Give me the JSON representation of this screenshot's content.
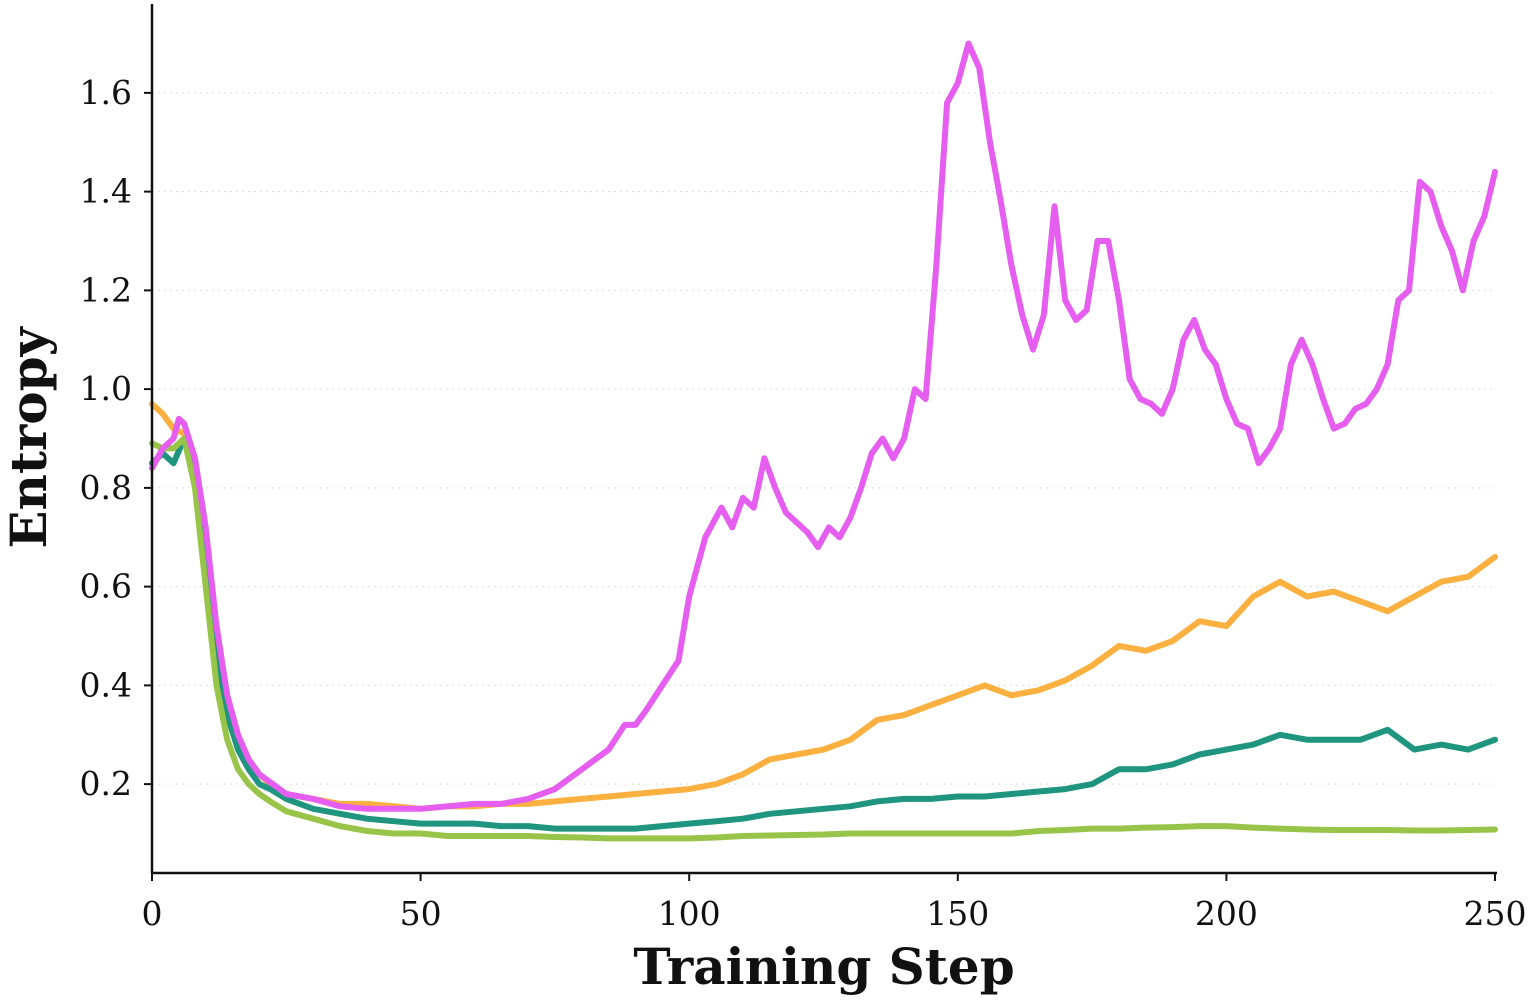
{
  "chart_data": {
    "type": "line",
    "title": "",
    "xlabel": "Training Step",
    "ylabel": "Entropy",
    "xlim": [
      0,
      250
    ],
    "ylim": [
      0.02,
      1.78
    ],
    "xticks": [
      0,
      50,
      100,
      150,
      200,
      250
    ],
    "xtick_labels": [
      "0",
      "50",
      "100",
      "150",
      "200",
      "250"
    ],
    "yticks": [
      0.2,
      0.4,
      0.6,
      0.8,
      1.0,
      1.2,
      1.4,
      1.6
    ],
    "ytick_labels": [
      "0.2",
      "0.4",
      "0.6",
      "0.8",
      "1.0",
      "1.2",
      "1.4",
      "1.6"
    ],
    "grid": "horizontal-dotted",
    "legend": "none",
    "series": [
      {
        "color": "#fbb040",
        "x": [
          0,
          2,
          4,
          6,
          8,
          10,
          12,
          14,
          16,
          18,
          20,
          22,
          25,
          30,
          35,
          40,
          45,
          50,
          55,
          60,
          65,
          70,
          75,
          80,
          85,
          90,
          95,
          100,
          105,
          110,
          115,
          120,
          125,
          130,
          135,
          140,
          145,
          150,
          155,
          160,
          165,
          170,
          175,
          180,
          185,
          190,
          195,
          200,
          205,
          210,
          215,
          220,
          225,
          230,
          235,
          240,
          245,
          250
        ],
        "y": [
          0.97,
          0.95,
          0.92,
          0.91,
          0.85,
          0.7,
          0.52,
          0.38,
          0.3,
          0.25,
          0.22,
          0.2,
          0.18,
          0.17,
          0.16,
          0.16,
          0.155,
          0.15,
          0.155,
          0.155,
          0.16,
          0.16,
          0.165,
          0.17,
          0.175,
          0.18,
          0.185,
          0.19,
          0.2,
          0.22,
          0.25,
          0.26,
          0.27,
          0.29,
          0.33,
          0.34,
          0.36,
          0.38,
          0.4,
          0.38,
          0.39,
          0.41,
          0.44,
          0.48,
          0.47,
          0.49,
          0.53,
          0.52,
          0.58,
          0.61,
          0.58,
          0.59,
          0.57,
          0.55,
          0.58,
          0.61,
          0.62,
          0.66
        ]
      },
      {
        "color": "#1f9580",
        "x": [
          0,
          2,
          4,
          6,
          8,
          10,
          12,
          14,
          16,
          18,
          20,
          22,
          25,
          30,
          35,
          40,
          45,
          50,
          55,
          60,
          65,
          70,
          75,
          80,
          85,
          90,
          95,
          100,
          105,
          110,
          115,
          120,
          125,
          130,
          135,
          140,
          145,
          150,
          155,
          160,
          165,
          170,
          175,
          180,
          185,
          190,
          195,
          200,
          205,
          210,
          215,
          220,
          225,
          230,
          235,
          240,
          245,
          250
        ],
        "y": [
          0.85,
          0.87,
          0.85,
          0.9,
          0.82,
          0.66,
          0.47,
          0.34,
          0.27,
          0.23,
          0.2,
          0.19,
          0.17,
          0.15,
          0.14,
          0.13,
          0.125,
          0.12,
          0.12,
          0.12,
          0.115,
          0.115,
          0.11,
          0.11,
          0.11,
          0.11,
          0.115,
          0.12,
          0.125,
          0.13,
          0.14,
          0.145,
          0.15,
          0.155,
          0.165,
          0.17,
          0.17,
          0.175,
          0.175,
          0.18,
          0.185,
          0.19,
          0.2,
          0.23,
          0.23,
          0.24,
          0.26,
          0.27,
          0.28,
          0.3,
          0.29,
          0.29,
          0.29,
          0.31,
          0.27,
          0.28,
          0.27,
          0.29
        ]
      },
      {
        "color": "#98c549",
        "x": [
          0,
          2,
          4,
          6,
          8,
          10,
          12,
          14,
          16,
          18,
          20,
          22,
          25,
          30,
          35,
          40,
          45,
          50,
          55,
          60,
          65,
          70,
          75,
          80,
          85,
          90,
          95,
          100,
          105,
          110,
          115,
          120,
          125,
          130,
          135,
          140,
          145,
          150,
          155,
          160,
          165,
          170,
          175,
          180,
          185,
          190,
          195,
          200,
          205,
          210,
          215,
          220,
          225,
          230,
          235,
          240,
          245,
          250
        ],
        "y": [
          0.89,
          0.88,
          0.88,
          0.9,
          0.8,
          0.6,
          0.4,
          0.29,
          0.23,
          0.2,
          0.18,
          0.165,
          0.145,
          0.13,
          0.115,
          0.105,
          0.1,
          0.1,
          0.095,
          0.095,
          0.095,
          0.095,
          0.093,
          0.092,
          0.09,
          0.09,
          0.09,
          0.09,
          0.092,
          0.095,
          0.096,
          0.097,
          0.098,
          0.1,
          0.1,
          0.1,
          0.1,
          0.1,
          0.1,
          0.1,
          0.105,
          0.107,
          0.11,
          0.11,
          0.112,
          0.113,
          0.115,
          0.115,
          0.112,
          0.11,
          0.108,
          0.107,
          0.107,
          0.107,
          0.106,
          0.106,
          0.107,
          0.108
        ]
      },
      {
        "color": "#e55ef0",
        "x": [
          0,
          2,
          4,
          5,
          6,
          8,
          10,
          12,
          14,
          16,
          18,
          20,
          25,
          30,
          35,
          40,
          45,
          50,
          55,
          60,
          65,
          70,
          75,
          80,
          85,
          88,
          90,
          92,
          95,
          98,
          100,
          103,
          106,
          108,
          110,
          112,
          114,
          116,
          118,
          120,
          122,
          124,
          126,
          128,
          130,
          132,
          134,
          136,
          138,
          140,
          142,
          144,
          146,
          148,
          150,
          152,
          154,
          156,
          158,
          160,
          162,
          164,
          166,
          168,
          170,
          172,
          174,
          176,
          178,
          180,
          182,
          184,
          186,
          188,
          190,
          192,
          194,
          196,
          198,
          200,
          202,
          204,
          206,
          208,
          210,
          212,
          214,
          216,
          218,
          220,
          222,
          224,
          226,
          228,
          230,
          232,
          234,
          236,
          238,
          240,
          242,
          244,
          246,
          248,
          250
        ],
        "y": [
          0.84,
          0.88,
          0.9,
          0.94,
          0.93,
          0.86,
          0.72,
          0.52,
          0.38,
          0.3,
          0.25,
          0.22,
          0.18,
          0.17,
          0.155,
          0.15,
          0.15,
          0.15,
          0.155,
          0.16,
          0.16,
          0.17,
          0.19,
          0.23,
          0.27,
          0.32,
          0.32,
          0.35,
          0.4,
          0.45,
          0.58,
          0.7,
          0.76,
          0.72,
          0.78,
          0.76,
          0.86,
          0.8,
          0.75,
          0.73,
          0.71,
          0.68,
          0.72,
          0.7,
          0.74,
          0.8,
          0.87,
          0.9,
          0.86,
          0.9,
          1.0,
          0.98,
          1.25,
          1.58,
          1.62,
          1.7,
          1.65,
          1.5,
          1.38,
          1.25,
          1.15,
          1.08,
          1.15,
          1.37,
          1.18,
          1.14,
          1.16,
          1.3,
          1.3,
          1.18,
          1.02,
          0.98,
          0.97,
          0.95,
          1.0,
          1.1,
          1.14,
          1.08,
          1.05,
          0.98,
          0.93,
          0.92,
          0.85,
          0.88,
          0.92,
          1.05,
          1.1,
          1.05,
          0.98,
          0.92,
          0.93,
          0.96,
          0.97,
          1.0,
          1.05,
          1.18,
          1.2,
          1.42,
          1.4,
          1.33,
          1.28,
          1.2,
          1.3,
          1.35,
          1.44
        ]
      }
    ]
  }
}
